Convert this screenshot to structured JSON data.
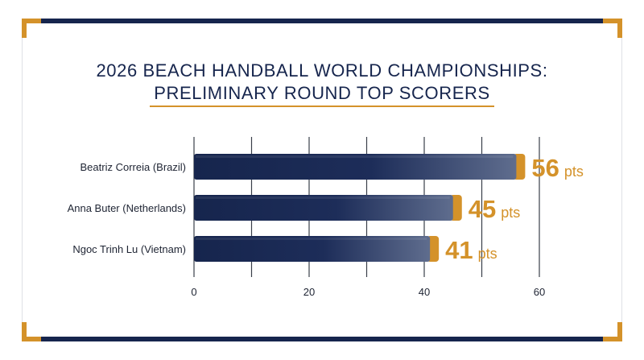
{
  "title": {
    "line1": "2026 BEACH HANDBALL WORLD CHAMPIONSHIPS:",
    "line2": "PRELIMINARY ROUND TOP SCORERS"
  },
  "colors": {
    "navy": "#16254d",
    "gold": "#d4922a",
    "grid": "#3a3f4a",
    "text": "#1e2433"
  },
  "chart_data": {
    "type": "bar",
    "orientation": "horizontal",
    "categories": [
      "Beatriz Correia (Brazil)",
      "Anna Buter (Netherlands)",
      "Ngoc Trinh Lu (Vietnam)"
    ],
    "values": [
      56,
      45,
      41
    ],
    "value_unit": "pts",
    "xlim": [
      0,
      60
    ],
    "xticks": [
      0,
      20,
      40,
      60
    ],
    "grid": true,
    "legend": "none"
  }
}
